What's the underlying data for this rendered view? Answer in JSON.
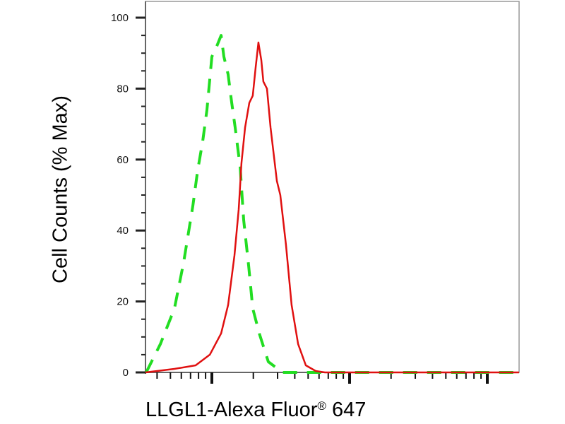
{
  "chart_data": {
    "type": "line",
    "title": "",
    "xlabel": "LLGL1-Alexa Fluor",
    "xlabel_mark": "®",
    "xlabel_suffix": "647",
    "ylabel": "Cell Counts (% Max)",
    "x_scale": "log10 (decades, unlabeled)",
    "xlim_log10": [
      0.52,
      3.23
    ],
    "ylim": [
      0,
      100
    ],
    "y_ticks": [
      "0",
      "20",
      "40",
      "60",
      "80",
      "100"
    ],
    "y_tick_values": [
      0,
      20,
      40,
      60,
      80,
      100
    ],
    "x_major_ticks_log10": [
      1,
      2,
      3
    ],
    "grid": false,
    "legend": "none",
    "series": [
      {
        "name": "green-dashed",
        "color": "#22dd22",
        "style": "dashed",
        "x_log10": [
          0.523,
          0.626,
          0.728,
          0.795,
          0.862,
          0.897,
          0.933,
          0.964,
          1.0,
          1.036,
          1.067,
          1.087,
          1.118,
          1.144,
          1.169,
          1.205,
          1.231,
          1.267,
          1.297,
          1.344,
          1.41,
          1.513,
          2.026,
          3.23
        ],
        "y": [
          0,
          8,
          18,
          31,
          47,
          57,
          65,
          74,
          89,
          92,
          95,
          89,
          84,
          76,
          69,
          58,
          43,
          30,
          18,
          11,
          3,
          0,
          0,
          0
        ]
      },
      {
        "name": "red-solid",
        "color": "#e01010",
        "style": "solid",
        "x_log10": [
          0.518,
          0.728,
          0.882,
          0.985,
          1.067,
          1.118,
          1.164,
          1.195,
          1.215,
          1.241,
          1.272,
          1.297,
          1.318,
          1.338,
          1.359,
          1.374,
          1.4,
          1.426,
          1.472,
          1.497,
          1.538,
          1.579,
          1.626,
          1.682,
          1.754,
          1.821,
          3.23
        ],
        "y": [
          0,
          1,
          2,
          5,
          11,
          19,
          33,
          46,
          59,
          69,
          76,
          78,
          86,
          93,
          88,
          82,
          80,
          69,
          54,
          50,
          36,
          19,
          8,
          2,
          0.4,
          0,
          0
        ]
      }
    ]
  }
}
